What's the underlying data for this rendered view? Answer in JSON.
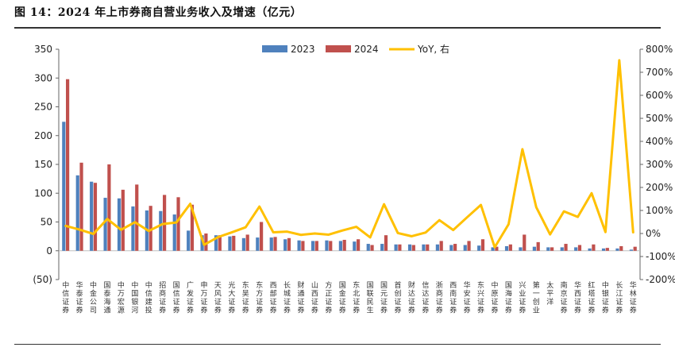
{
  "title": "图 14：2024 年上市券商自营业务收入及增速（亿元）",
  "chart_data": {
    "type": "bar",
    "categories": [
      "中信证券",
      "华泰证券",
      "中金公司",
      "国泰海通",
      "中万宏源",
      "中国银河",
      "中信建投",
      "招商证券",
      "国信证券",
      "广发证券",
      "申万证券",
      "天风证券",
      "光大证券",
      "东吴证券",
      "东方证券",
      "西部证券",
      "长城证券",
      "财通证券",
      "山西证券",
      "方正证券",
      "国金证券",
      "东北证券",
      "国联民生",
      "国元证券",
      "首创证券",
      "财达证券",
      "信达证券",
      "浙商证券",
      "西南证券",
      "华安证券",
      "东兴证券",
      "中原证券",
      "国海证券",
      "兴业证券",
      "第一创业",
      "太平洋",
      "南京证券",
      "华西证券",
      "红塔证券",
      "中银证券",
      "长江证券",
      "华林证券"
    ],
    "series": [
      {
        "name": "2023",
        "type": "bar",
        "axis": "left",
        "color": "#4f81bd",
        "values": [
          224,
          131,
          120,
          92,
          91,
          77,
          70,
          69,
          63,
          35,
          27,
          27,
          25,
          22,
          23,
          23,
          20,
          18,
          17,
          18,
          17,
          16,
          12,
          12,
          11,
          11,
          11,
          11,
          10,
          10,
          9,
          6,
          8,
          6,
          7,
          6,
          6,
          6,
          4,
          4,
          4,
          2
        ]
      },
      {
        "name": "2024",
        "type": "bar",
        "axis": "left",
        "color": "#c0504d",
        "values": [
          298,
          153,
          118,
          150,
          106,
          115,
          78,
          97,
          93,
          80,
          30,
          27,
          26,
          28,
          50,
          24,
          22,
          17,
          17,
          17,
          19,
          20,
          10,
          27,
          11,
          10,
          11,
          17,
          12,
          17,
          20,
          7,
          11,
          28,
          15,
          6,
          12,
          10,
          11,
          5,
          8,
          7
        ]
      },
      {
        "name": "YoY, 右",
        "type": "line",
        "axis": "right",
        "color": "#ffc000",
        "values": [
          33,
          17,
          -2,
          63,
          16,
          49,
          11,
          41,
          48,
          129,
          -49,
          -16,
          5,
          27,
          117,
          5,
          8,
          -6,
          0,
          -5,
          13,
          29,
          -17,
          127,
          2,
          -12,
          4,
          58,
          15,
          70,
          124,
          -60,
          40,
          366,
          114,
          -4,
          96,
          72,
          175,
          6,
          752,
          5
        ]
      }
    ],
    "yleft": {
      "min": -50,
      "max": 350,
      "ticks": [
        350,
        300,
        250,
        200,
        150,
        100,
        50,
        0,
        -50
      ],
      "tick_labels": [
        "350",
        "300",
        "250",
        "200",
        "150",
        "100",
        "50",
        "0",
        "(50)"
      ],
      "neg_color": "#c00000"
    },
    "yright": {
      "min": -200,
      "max": 800,
      "ticks": [
        800,
        700,
        600,
        500,
        400,
        300,
        200,
        100,
        0,
        -100,
        -200
      ],
      "tick_labels": [
        "800%",
        "700%",
        "600%",
        "500%",
        "400%",
        "300%",
        "200%",
        "100%",
        "0%",
        "-100%",
        "-200%"
      ]
    },
    "legend": {
      "position": "top-right",
      "entries": [
        "2023",
        "2024",
        "YoY, 右"
      ]
    }
  }
}
